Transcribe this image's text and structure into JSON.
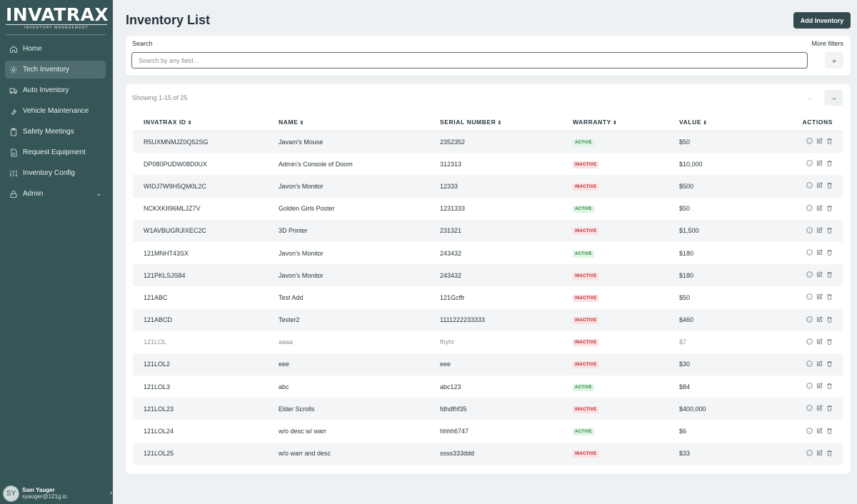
{
  "brand": {
    "name": "INVATRAX",
    "tagline": "INVENTORY MANAGEMENT"
  },
  "sidebar": {
    "items": [
      {
        "label": "Home",
        "icon": "home-icon",
        "active": false
      },
      {
        "label": "Tech Inventory",
        "icon": "gear-icon",
        "active": true
      },
      {
        "label": "Auto Inventory",
        "icon": "truck-icon",
        "active": false
      },
      {
        "label": "Vehicle Maintenance",
        "icon": "wrench-icon",
        "active": false
      },
      {
        "label": "Safety Meetings",
        "icon": "clipboard-icon",
        "active": false
      },
      {
        "label": "Request Equipment",
        "icon": "document-icon",
        "active": false
      },
      {
        "label": "Inventory Config",
        "icon": "sliders-icon",
        "active": false
      },
      {
        "label": "Admin",
        "icon": "lock-icon",
        "active": false
      }
    ]
  },
  "user": {
    "initials": "SY",
    "name": "Sam Yauger",
    "email": "syauger@121g.io"
  },
  "header": {
    "title": "Inventory List",
    "add_button": "Add Inventory"
  },
  "search": {
    "label": "Search",
    "placeholder": "Search by any field...",
    "more_filters": "More filters"
  },
  "table": {
    "showing": "Showing 1-15 of 25",
    "columns": {
      "id": "INVATRAX ID",
      "name": "NAME",
      "serial": "SERIAL NUMBER",
      "warranty": "WARRANTY",
      "value": "VALUE",
      "actions": "ACTIONS"
    },
    "rows": [
      {
        "id": "R5UXMNMJZ0Q52SG",
        "name": "Javam's Mouse",
        "serial": "2352352",
        "warranty": "ACTIVE",
        "value": "$50"
      },
      {
        "id": "DP080PUDW08D0UX",
        "name": "Admin's Console of Doom",
        "serial": "312313",
        "warranty": "INACTIVE",
        "value": "$10,000"
      },
      {
        "id": "WIDJ7W9H5QM0L2C",
        "name": "Javon's Monitor",
        "serial": "12333",
        "warranty": "INACTIVE",
        "value": "$500"
      },
      {
        "id": "NCKXKII96MLJZ7V",
        "name": "Golden Girls Poster",
        "serial": "1231333",
        "warranty": "ACTIVE",
        "value": "$50"
      },
      {
        "id": "W1AVBUGRJIXEC2C",
        "name": "3D Printer",
        "serial": "231321",
        "warranty": "INACTIVE",
        "value": "$1,500"
      },
      {
        "id": "121MNHT43SX",
        "name": "Javon's Monitor",
        "serial": "243432",
        "warranty": "ACTIVE",
        "value": "$180"
      },
      {
        "id": "121PKLSJS84",
        "name": "Javon's Monitor",
        "serial": "243432",
        "warranty": "INACTIVE",
        "value": "$180"
      },
      {
        "id": "121ABC",
        "name": "Test Add",
        "serial": "121Gcffr",
        "warranty": "INACTIVE",
        "value": "$50"
      },
      {
        "id": "121ABCD",
        "name": "Tester2",
        "serial": "1111222233333",
        "warranty": "INACTIVE",
        "value": "$460"
      },
      {
        "id": "121LOL",
        "name": "aaaa",
        "serial": "fhyht",
        "warranty": "INACTIVE",
        "value": "$7",
        "faded": true
      },
      {
        "id": "121LOL2",
        "name": "eee",
        "serial": "eee",
        "warranty": "INACTIVE",
        "value": "$30"
      },
      {
        "id": "121LOL3",
        "name": "abc",
        "serial": "abc123",
        "warranty": "ACTIVE",
        "value": "$84"
      },
      {
        "id": "121LOL23",
        "name": "Elder Scrolls",
        "serial": "fdhdfhf35",
        "warranty": "INACTIVE",
        "value": "$400,000"
      },
      {
        "id": "121LOL24",
        "name": "w/o desc w/ warr",
        "serial": "hhhh6747",
        "warranty": "ACTIVE",
        "value": "$6"
      },
      {
        "id": "121LOL25",
        "name": "w/o warr and desc",
        "serial": "ssss333ddd",
        "warranty": "INACTIVE",
        "value": "$33"
      }
    ]
  },
  "colors": {
    "sidebar": "#355556",
    "active_badge": "#23803a",
    "inactive_badge": "#b9262e",
    "button": "#344a4f"
  }
}
